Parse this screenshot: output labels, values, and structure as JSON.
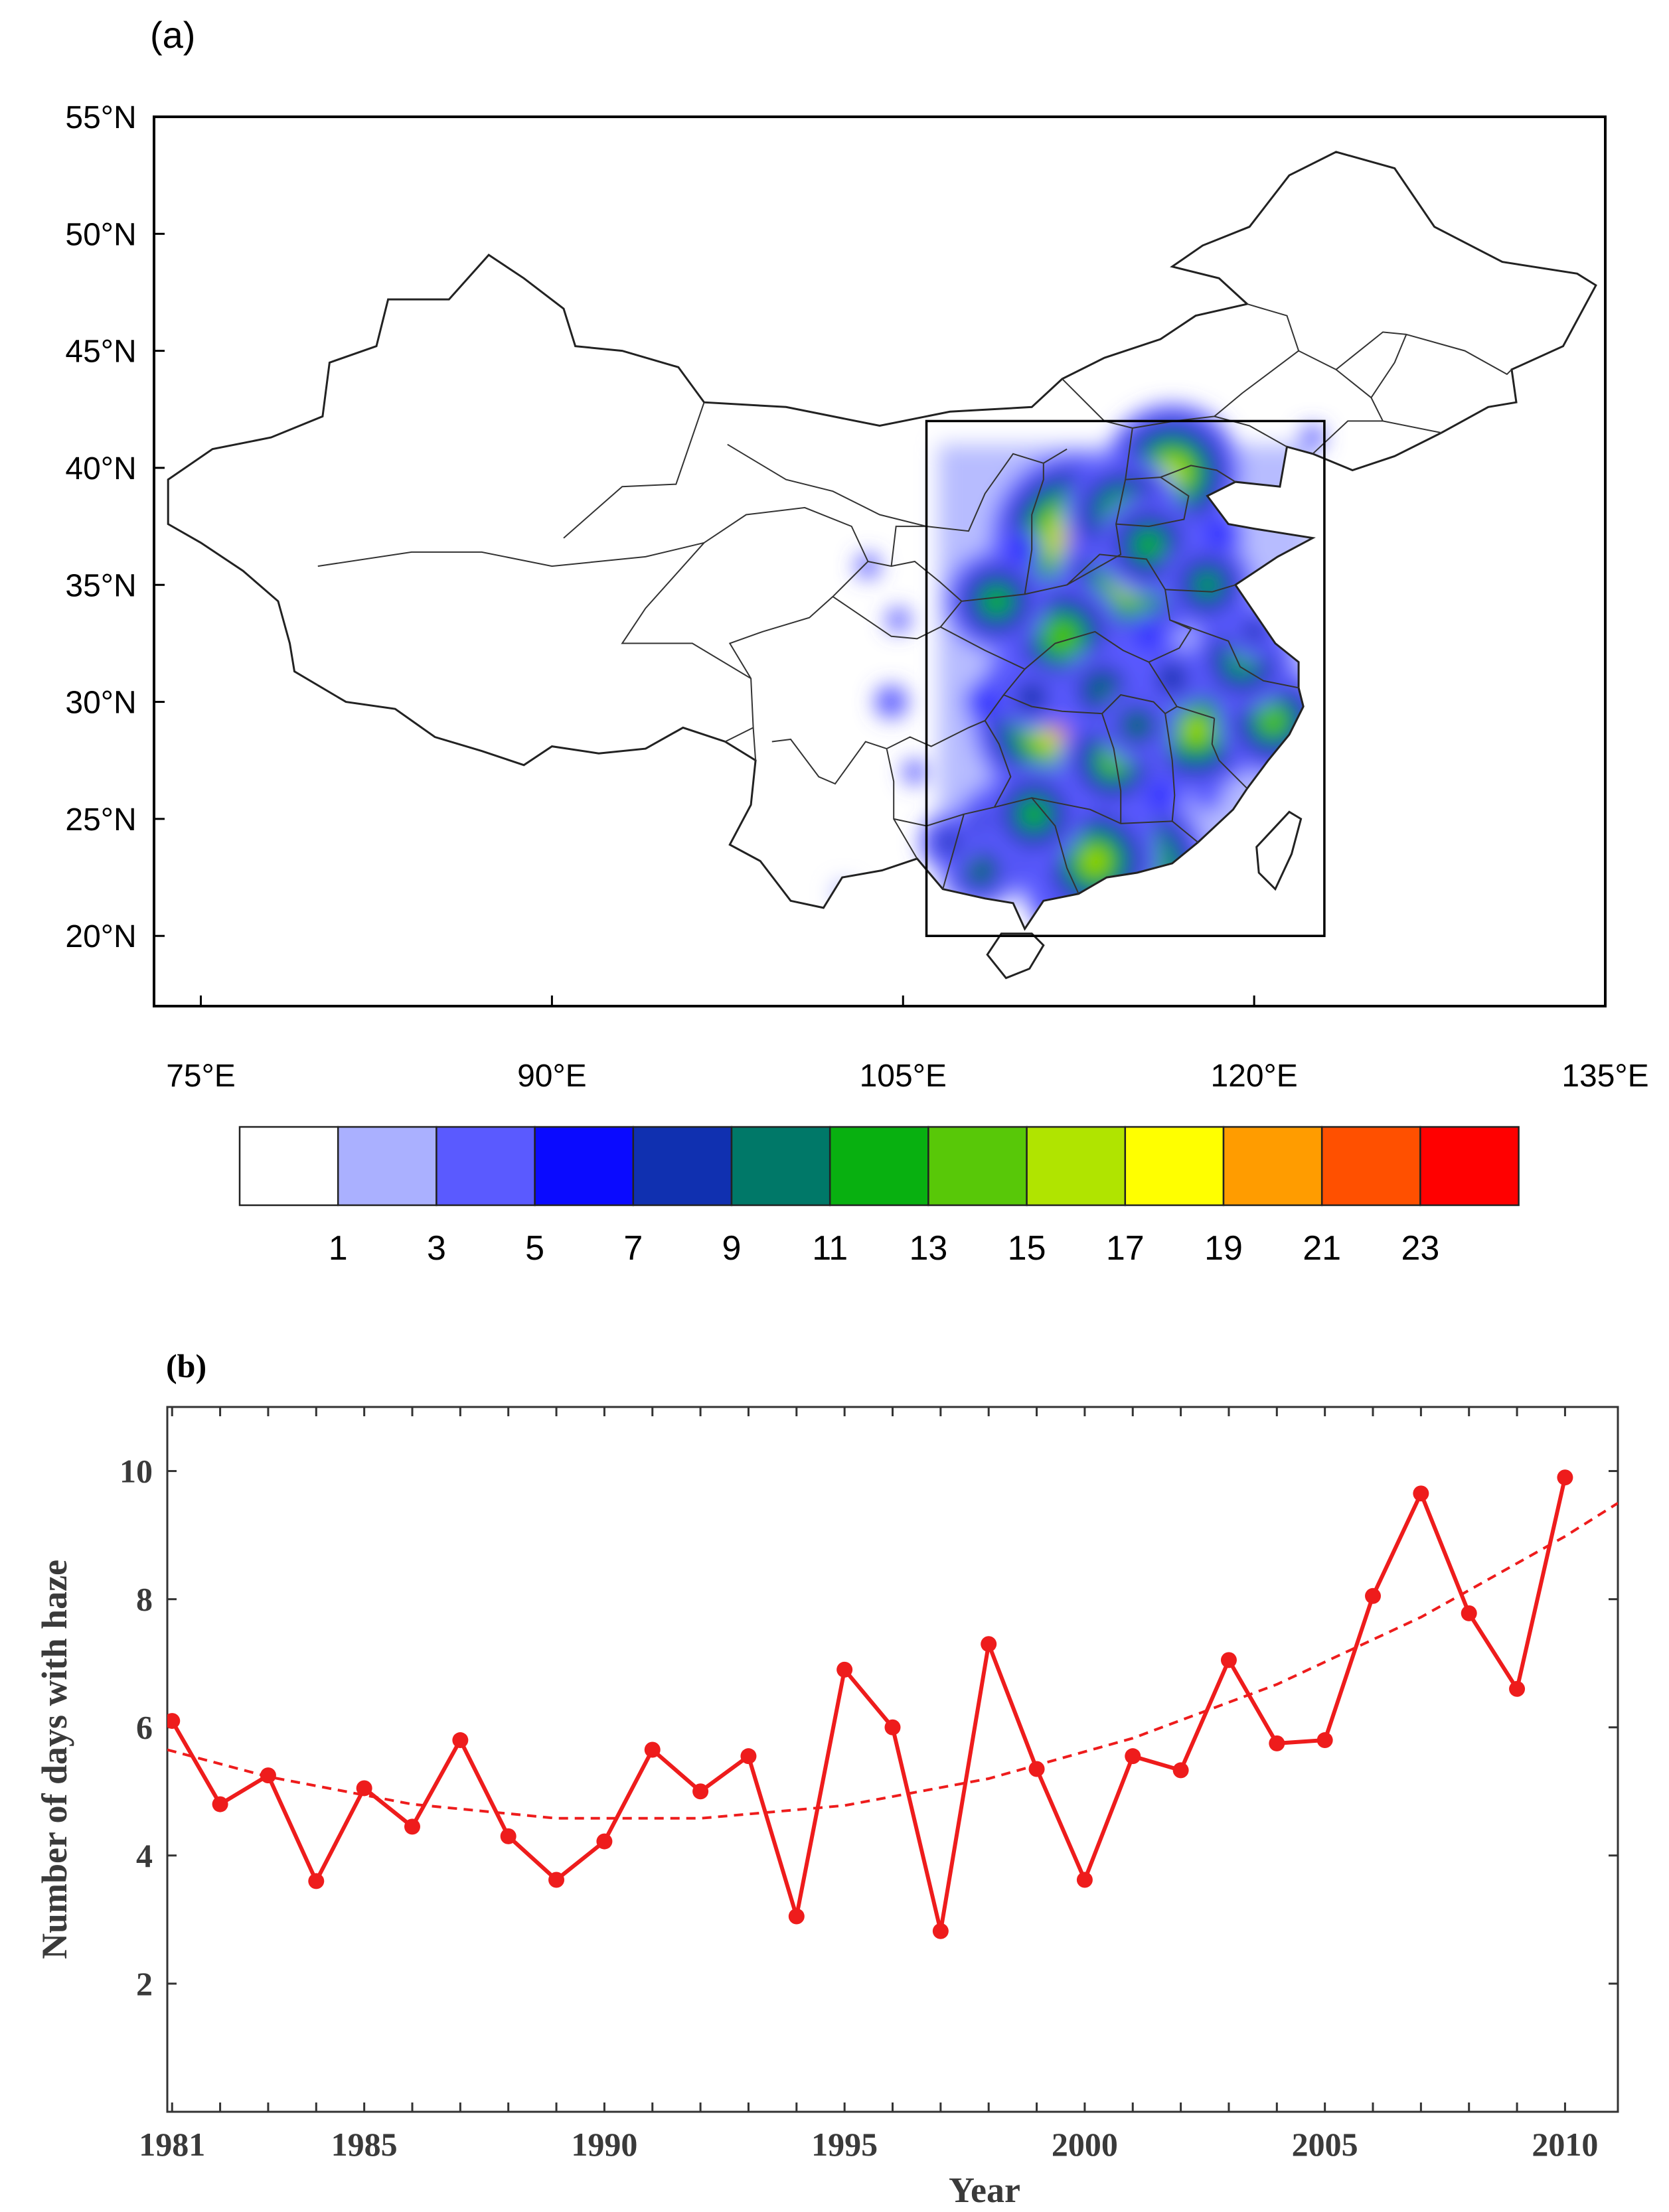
{
  "chart_data": [
    {
      "panel_label": "(a)",
      "type": "heatmap",
      "subtype": "filled contour map",
      "x_ticks": [
        "75°E",
        "90°E",
        "105°E",
        "120°E",
        "135°E"
      ],
      "x_tick_values": [
        75,
        90,
        105,
        120,
        135
      ],
      "y_ticks": [
        "20°N",
        "25°N",
        "30°N",
        "35°N",
        "40°N",
        "45°N",
        "50°N",
        "55°N"
      ],
      "y_tick_values": [
        20,
        25,
        30,
        35,
        40,
        45,
        50,
        55
      ],
      "xlim": [
        73,
        135
      ],
      "ylim": [
        17,
        55
      ],
      "box": {
        "lon": [
          106,
          123
        ],
        "lat": [
          20,
          42
        ]
      },
      "colorbar": {
        "labels": [
          "1",
          "3",
          "5",
          "7",
          "9",
          "11",
          "13",
          "15",
          "17",
          "19",
          "21",
          "23"
        ],
        "colors": [
          "#ffffff",
          "#aab0ff",
          "#5a5aff",
          "#0a0aff",
          "#1030b0",
          "#007868",
          "#08b010",
          "#58c808",
          "#b0e400",
          "#ffff00",
          "#ff9c00",
          "#ff5000",
          "#ff0000"
        ]
      },
      "blobs": [
        {
          "lon": 112.8,
          "lat": 35.6,
          "v": 22
        },
        {
          "lon": 112.4,
          "lat": 37.0,
          "v": 20
        },
        {
          "lon": 112.0,
          "lat": 29.3,
          "v": 22
        },
        {
          "lon": 114.1,
          "lat": 22.7,
          "v": 22
        },
        {
          "lon": 114.7,
          "lat": 35.2,
          "v": 17
        },
        {
          "lon": 116.5,
          "lat": 39.8,
          "v": 16
        },
        {
          "lon": 114.4,
          "lat": 38.0,
          "v": 14
        },
        {
          "lon": 115.5,
          "lat": 36.7,
          "v": 12
        },
        {
          "lon": 112.0,
          "lat": 31.6,
          "v": 15
        },
        {
          "lon": 111.8,
          "lat": 32.8,
          "v": 14
        },
        {
          "lon": 109.0,
          "lat": 34.3,
          "v": 12
        },
        {
          "lon": 112.7,
          "lat": 24.0,
          "v": 17
        },
        {
          "lon": 113.2,
          "lat": 23.2,
          "v": 15
        },
        {
          "lon": 117.5,
          "lat": 28.8,
          "v": 15
        },
        {
          "lon": 120.8,
          "lat": 29.2,
          "v": 13
        },
        {
          "lon": 119.5,
          "lat": 31.8,
          "v": 12
        },
        {
          "lon": 118.0,
          "lat": 35.0,
          "v": 11
        },
        {
          "lon": 114.0,
          "lat": 27.5,
          "v": 13
        },
        {
          "lon": 109.5,
          "lat": 24.3,
          "v": 13
        },
        {
          "lon": 110.6,
          "lat": 25.2,
          "v": 12
        },
        {
          "lon": 108.3,
          "lat": 22.8,
          "v": 9
        },
        {
          "lon": 107.0,
          "lat": 24.0,
          "v": 7
        },
        {
          "lon": 110.5,
          "lat": 30.2,
          "v": 8
        },
        {
          "lon": 116.5,
          "lat": 31.0,
          "v": 8
        },
        {
          "lon": 120.0,
          "lat": 33.0,
          "v": 7
        },
        {
          "lon": 113.5,
          "lat": 30.5,
          "v": 10
        },
        {
          "lon": 115.0,
          "lat": 29.0,
          "v": 9
        },
        {
          "lon": 118.5,
          "lat": 37.2,
          "v": 6
        },
        {
          "lon": 110.0,
          "lat": 36.5,
          "v": 5
        },
        {
          "lon": 115.5,
          "lat": 32.8,
          "v": 6
        },
        {
          "lon": 116.0,
          "lat": 26.0,
          "v": 6
        },
        {
          "lon": 118.0,
          "lat": 26.0,
          "v": 4
        },
        {
          "lon": 108.5,
          "lat": 30.0,
          "v": 5
        },
        {
          "lon": 104.5,
          "lat": 30.0,
          "v": 4
        },
        {
          "lon": 104.8,
          "lat": 33.5,
          "v": 3
        },
        {
          "lon": 103.5,
          "lat": 35.8,
          "v": 3
        },
        {
          "lon": 121.0,
          "lat": 24.2,
          "v": 3
        },
        {
          "lon": 122.5,
          "lat": 41.3,
          "v": 3
        },
        {
          "lon": 102.5,
          "lat": 21.8,
          "v": 2
        },
        {
          "lon": 105.5,
          "lat": 27.0,
          "v": 3
        }
      ]
    },
    {
      "panel_label": "(b)",
      "type": "line",
      "xlabel": "Year",
      "ylabel": "Number of days with haze",
      "xlim": [
        1980.9,
        2011.1
      ],
      "ylim": [
        0,
        11
      ],
      "x_ticks": [
        "1981",
        "1985",
        "1990",
        "1995",
        "2000",
        "2005",
        "2010"
      ],
      "x_tick_values": [
        1981,
        1985,
        1990,
        1995,
        2000,
        2005,
        2010
      ],
      "y_ticks": [
        "2",
        "4",
        "6",
        "8",
        "10"
      ],
      "y_tick_values": [
        2,
        4,
        6,
        8,
        10
      ],
      "color": "#ee1c1c",
      "x": [
        1981,
        1982,
        1983,
        1984,
        1985,
        1986,
        1987,
        1988,
        1989,
        1990,
        1991,
        1992,
        1993,
        1994,
        1995,
        1996,
        1997,
        1998,
        1999,
        2000,
        2001,
        2002,
        2003,
        2004,
        2005,
        2006,
        2007,
        2008,
        2009,
        2010
      ],
      "values": [
        6.1,
        4.8,
        5.25,
        3.6,
        5.05,
        4.45,
        5.8,
        4.3,
        3.62,
        4.22,
        5.65,
        5.0,
        5.55,
        3.05,
        6.9,
        6.0,
        2.82,
        7.3,
        5.35,
        3.62,
        5.55,
        5.33,
        7.05,
        5.75,
        5.8,
        8.05,
        9.65,
        7.78,
        6.6,
        9.9
      ],
      "trend": {
        "style": "dashed",
        "x": [
          1980.9,
          1983,
          1986,
          1989,
          1992,
          1995,
          1998,
          2001,
          2004,
          2007,
          2010,
          2011.1
        ],
        "values": [
          5.65,
          5.23,
          4.8,
          4.58,
          4.58,
          4.78,
          5.2,
          5.83,
          6.67,
          7.72,
          8.98,
          9.5
        ]
      }
    }
  ]
}
